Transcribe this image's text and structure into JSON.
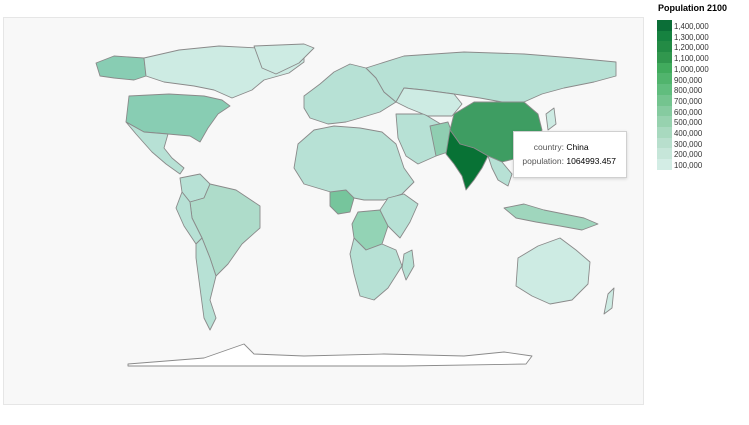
{
  "legend": {
    "title": "Population 2100",
    "ticks": [
      "1,400,000",
      "1,300,000",
      "1,200,000",
      "1,100,000",
      "1,000,000",
      "900,000",
      "800,000",
      "700,000",
      "600,000",
      "500,000",
      "400,000",
      "300,000",
      "200,000",
      "100,000"
    ],
    "colors": [
      "#0b6e37",
      "#168240",
      "#238b45",
      "#31974e",
      "#41ab5d",
      "#51b46d",
      "#61bd7e",
      "#74c48f",
      "#86cba0",
      "#97d2af",
      "#a8d9bf",
      "#b8dfcd",
      "#c6e6d9",
      "#d3ede5"
    ]
  },
  "tooltip": {
    "country_key": "country:",
    "country_value": "China",
    "population_key": "population:",
    "population_value": "1064993.457"
  },
  "map_colors": {
    "ocean": "#f8f8f8",
    "default_land": "#b7e1d5",
    "light_land": "#cdebe3",
    "border": "#8a8a8a",
    "usa": "#88cdb3",
    "china": "#3e9d62",
    "india": "#087235",
    "nigeria": "#76c59c",
    "drc": "#93d3b5",
    "pakistan": "#8fceb1",
    "indonesia": "#9fd6bd",
    "brazil": "#aedcca",
    "antarctica": "#ffffff"
  }
}
